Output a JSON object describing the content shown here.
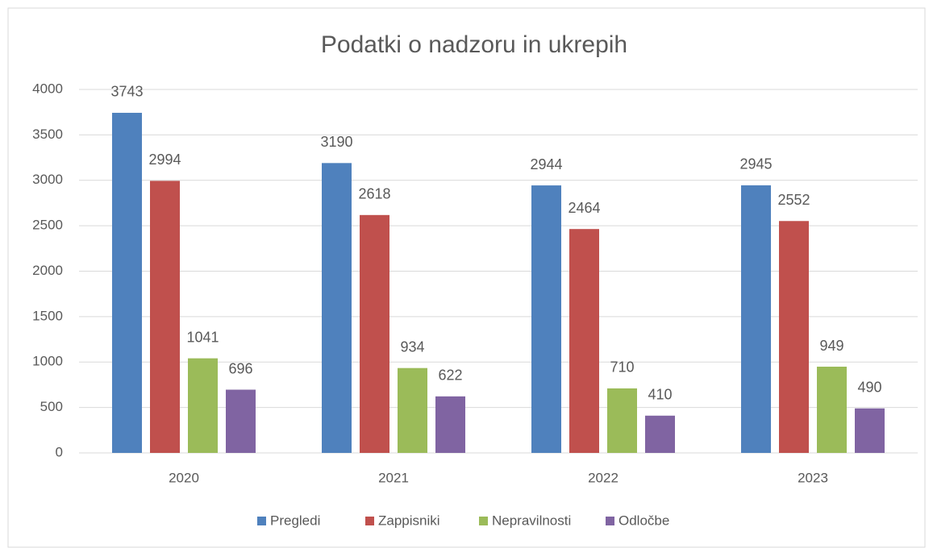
{
  "chart_data": {
    "type": "bar",
    "title": "Podatki o nadzoru in ukrepih",
    "categories": [
      "2020",
      "2021",
      "2022",
      "2023"
    ],
    "series": [
      {
        "name": "Pregledi",
        "color": "#4f81bd",
        "values": [
          3743,
          3190,
          2944,
          2945
        ]
      },
      {
        "name": "Zappisniki",
        "color": "#c0504d",
        "values": [
          2994,
          2618,
          2464,
          2552
        ]
      },
      {
        "name": "Nepravilnosti",
        "color": "#9bbb59",
        "values": [
          1041,
          934,
          710,
          949
        ]
      },
      {
        "name": "Odločbe",
        "color": "#8064a2",
        "values": [
          696,
          622,
          410,
          490
        ]
      }
    ],
    "ylim": [
      0,
      4000
    ],
    "yticks": [
      0,
      500,
      1000,
      1500,
      2000,
      2500,
      3000,
      3500,
      4000
    ],
    "grid": true,
    "legend": "bottom"
  }
}
